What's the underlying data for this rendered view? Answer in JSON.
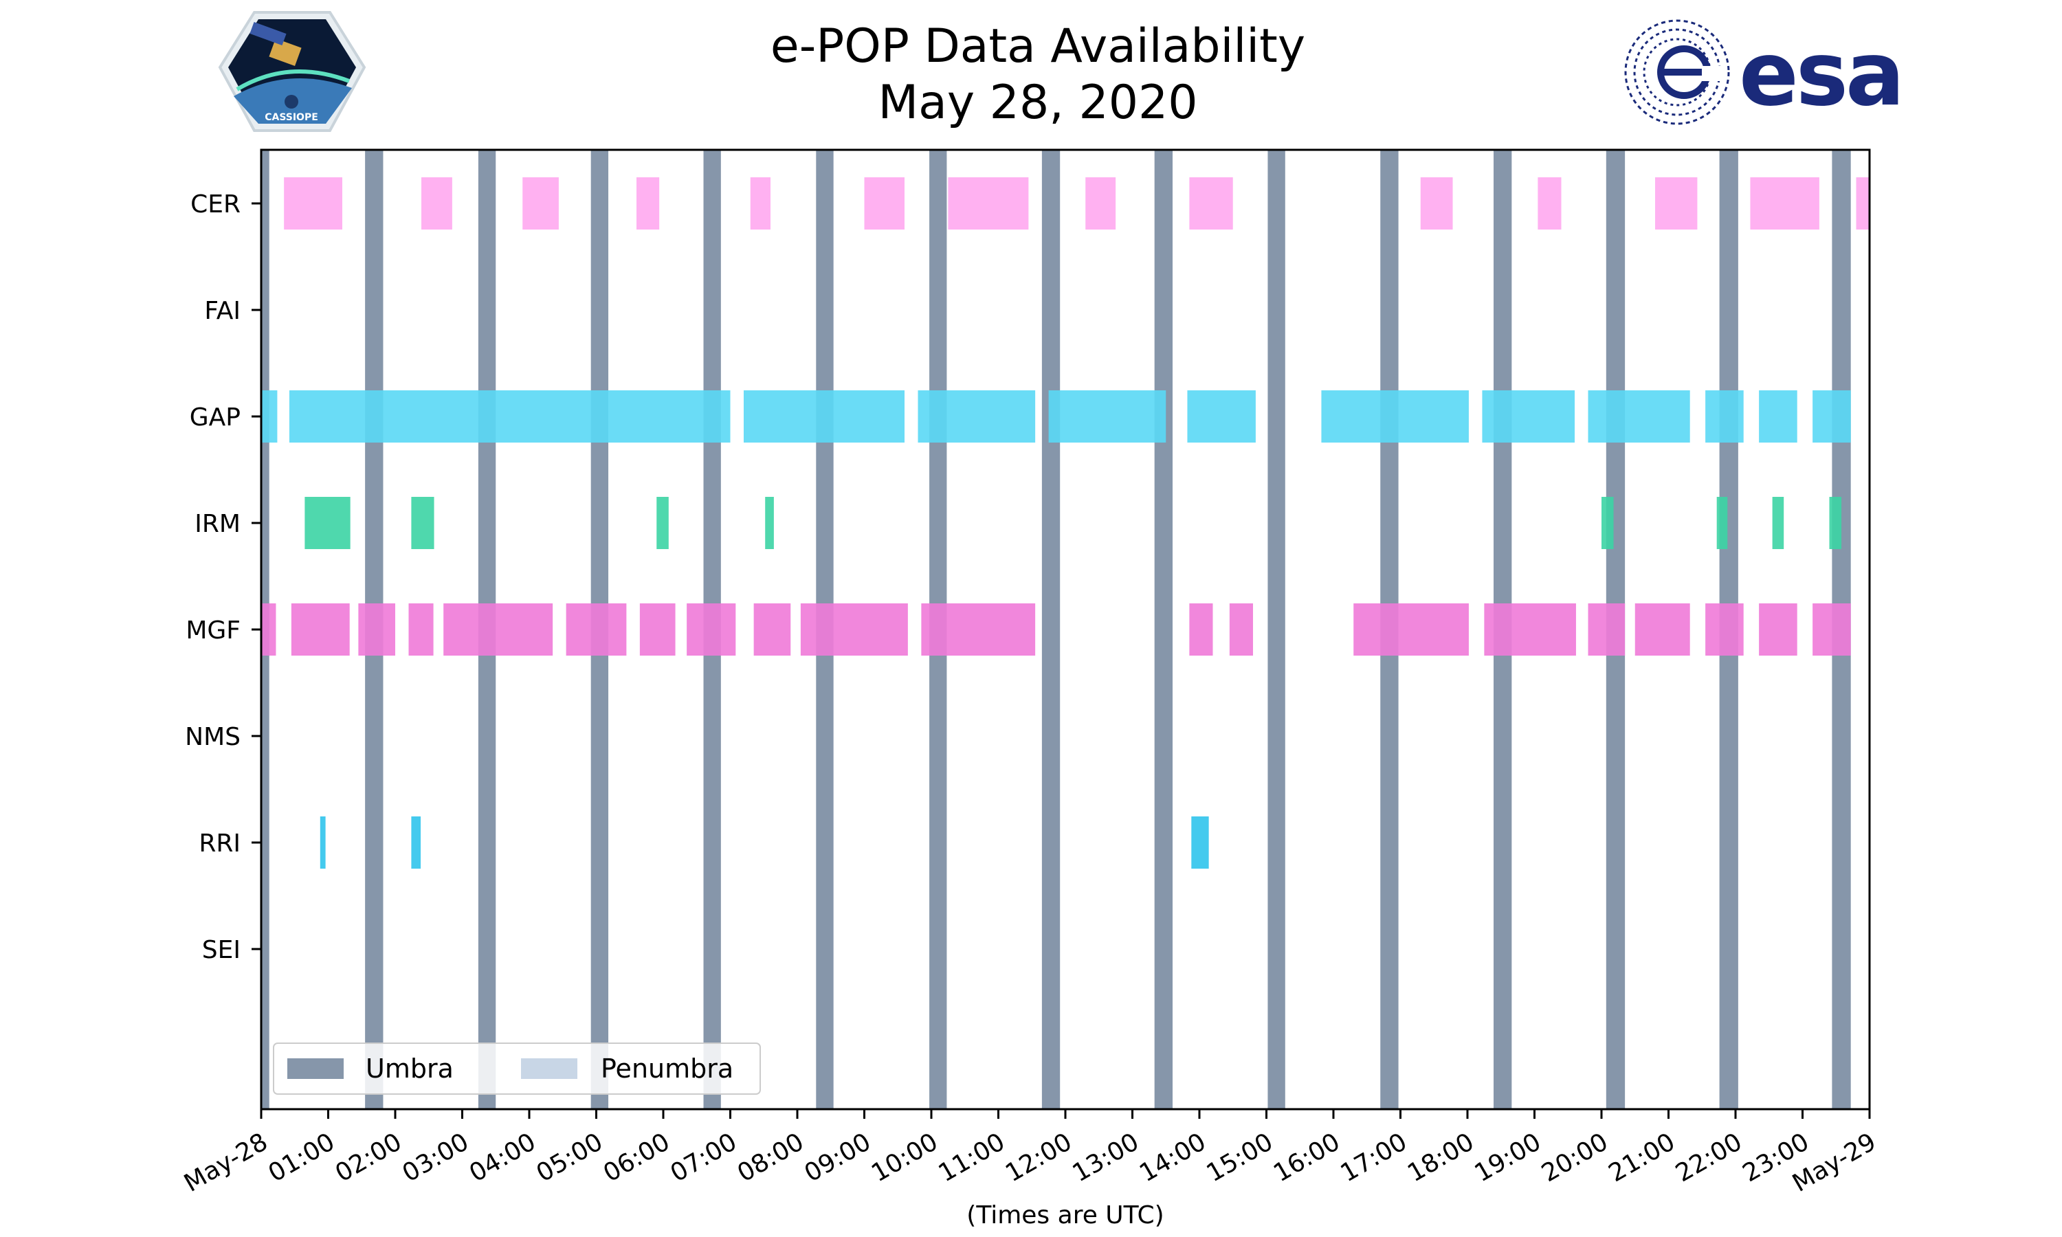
{
  "header": {
    "title": "e-POP Data Availability",
    "subtitle": "May 28, 2020",
    "logo_left_text": "CASSIOPE",
    "logo_right_text": "esa"
  },
  "colors": {
    "umbra": "#8696aa",
    "penumbra": "#c8d6e6",
    "CER": "#ffa8f0",
    "GAP": "#5ad8f5",
    "IRM": "#3cd4a4",
    "MGF": "#f07ad8",
    "RRI": "#30c4ec",
    "esa_blue": "#1a2a7a"
  },
  "chart_data": {
    "type": "timeline",
    "title": "e-POP Data Availability",
    "subtitle": "May 28, 2020",
    "xlabel": "(Times are UTC)",
    "x_unit": "hour of day (UTC), May 28, 2020",
    "xlim": [
      0,
      24
    ],
    "x_ticks": [
      {
        "value": 0,
        "label": "May-28"
      },
      {
        "value": 1,
        "label": "01:00"
      },
      {
        "value": 2,
        "label": "02:00"
      },
      {
        "value": 3,
        "label": "03:00"
      },
      {
        "value": 4,
        "label": "04:00"
      },
      {
        "value": 5,
        "label": "05:00"
      },
      {
        "value": 6,
        "label": "06:00"
      },
      {
        "value": 7,
        "label": "07:00"
      },
      {
        "value": 8,
        "label": "08:00"
      },
      {
        "value": 9,
        "label": "09:00"
      },
      {
        "value": 10,
        "label": "10:00"
      },
      {
        "value": 11,
        "label": "11:00"
      },
      {
        "value": 12,
        "label": "12:00"
      },
      {
        "value": 13,
        "label": "13:00"
      },
      {
        "value": 14,
        "label": "14:00"
      },
      {
        "value": 15,
        "label": "15:00"
      },
      {
        "value": 16,
        "label": "16:00"
      },
      {
        "value": 17,
        "label": "17:00"
      },
      {
        "value": 18,
        "label": "18:00"
      },
      {
        "value": 19,
        "label": "19:00"
      },
      {
        "value": 20,
        "label": "20:00"
      },
      {
        "value": 21,
        "label": "21:00"
      },
      {
        "value": 22,
        "label": "22:00"
      },
      {
        "value": 23,
        "label": "23:00"
      },
      {
        "value": 24,
        "label": "May-29"
      }
    ],
    "categories": [
      "CER",
      "FAI",
      "GAP",
      "IRM",
      "MGF",
      "NMS",
      "RRI",
      "SEI"
    ],
    "umbra": [
      [
        0.0,
        0.12
      ],
      [
        1.55,
        1.82
      ],
      [
        3.24,
        3.5
      ],
      [
        4.92,
        5.18
      ],
      [
        6.6,
        6.86
      ],
      [
        8.28,
        8.54
      ],
      [
        9.97,
        10.23
      ],
      [
        11.65,
        11.92
      ],
      [
        13.33,
        13.6
      ],
      [
        15.02,
        15.28
      ],
      [
        16.7,
        16.97
      ],
      [
        18.39,
        18.66
      ],
      [
        20.07,
        20.35
      ],
      [
        21.76,
        22.04
      ],
      [
        23.44,
        23.72
      ]
    ],
    "series": [
      {
        "name": "CER",
        "intervals": [
          [
            0.34,
            1.21
          ],
          [
            2.39,
            2.85
          ],
          [
            3.9,
            4.44
          ],
          [
            5.6,
            5.94
          ],
          [
            7.3,
            7.6
          ],
          [
            9.0,
            9.6
          ],
          [
            10.25,
            11.45
          ],
          [
            12.3,
            12.75
          ],
          [
            13.85,
            14.5
          ],
          [
            17.3,
            17.78
          ],
          [
            19.05,
            19.4
          ],
          [
            20.8,
            21.43
          ],
          [
            22.22,
            23.25
          ],
          [
            23.8,
            24.0
          ]
        ]
      },
      {
        "name": "FAI",
        "intervals": []
      },
      {
        "name": "GAP",
        "intervals": [
          [
            0.0,
            0.24
          ],
          [
            0.42,
            7.0
          ],
          [
            7.2,
            9.6
          ],
          [
            9.8,
            11.55
          ],
          [
            11.75,
            13.5
          ],
          [
            13.82,
            14.84
          ],
          [
            15.82,
            18.02
          ],
          [
            18.22,
            19.6
          ],
          [
            19.8,
            21.32
          ],
          [
            21.55,
            22.12
          ],
          [
            22.35,
            22.92
          ],
          [
            23.15,
            23.72
          ]
        ]
      },
      {
        "name": "IRM",
        "intervals": [
          [
            0.65,
            1.33
          ],
          [
            2.24,
            2.58
          ],
          [
            5.9,
            6.08
          ],
          [
            7.52,
            7.65
          ],
          [
            20.0,
            20.18
          ],
          [
            21.72,
            21.88
          ],
          [
            22.55,
            22.72
          ],
          [
            23.4,
            23.58
          ]
        ]
      },
      {
        "name": "MGF",
        "intervals": [
          [
            0.0,
            0.22
          ],
          [
            0.45,
            1.32
          ],
          [
            1.45,
            2.0
          ],
          [
            2.2,
            2.57
          ],
          [
            2.72,
            4.35
          ],
          [
            4.55,
            5.45
          ],
          [
            5.65,
            6.18
          ],
          [
            6.35,
            7.08
          ],
          [
            7.35,
            7.9
          ],
          [
            8.05,
            9.65
          ],
          [
            9.85,
            11.55
          ],
          [
            13.85,
            14.2
          ],
          [
            14.45,
            14.8
          ],
          [
            16.3,
            18.02
          ],
          [
            18.25,
            19.62
          ],
          [
            19.8,
            20.35
          ],
          [
            20.5,
            21.32
          ],
          [
            21.55,
            22.12
          ],
          [
            22.35,
            22.92
          ],
          [
            23.15,
            23.72
          ]
        ]
      },
      {
        "name": "NMS",
        "intervals": []
      },
      {
        "name": "RRI",
        "intervals": [
          [
            0.88,
            0.96
          ],
          [
            2.24,
            2.38
          ],
          [
            13.88,
            14.14
          ]
        ]
      },
      {
        "name": "SEI",
        "intervals": []
      }
    ],
    "legend": {
      "placement": "lower-left",
      "entries": [
        "Umbra",
        "Penumbra"
      ]
    }
  }
}
